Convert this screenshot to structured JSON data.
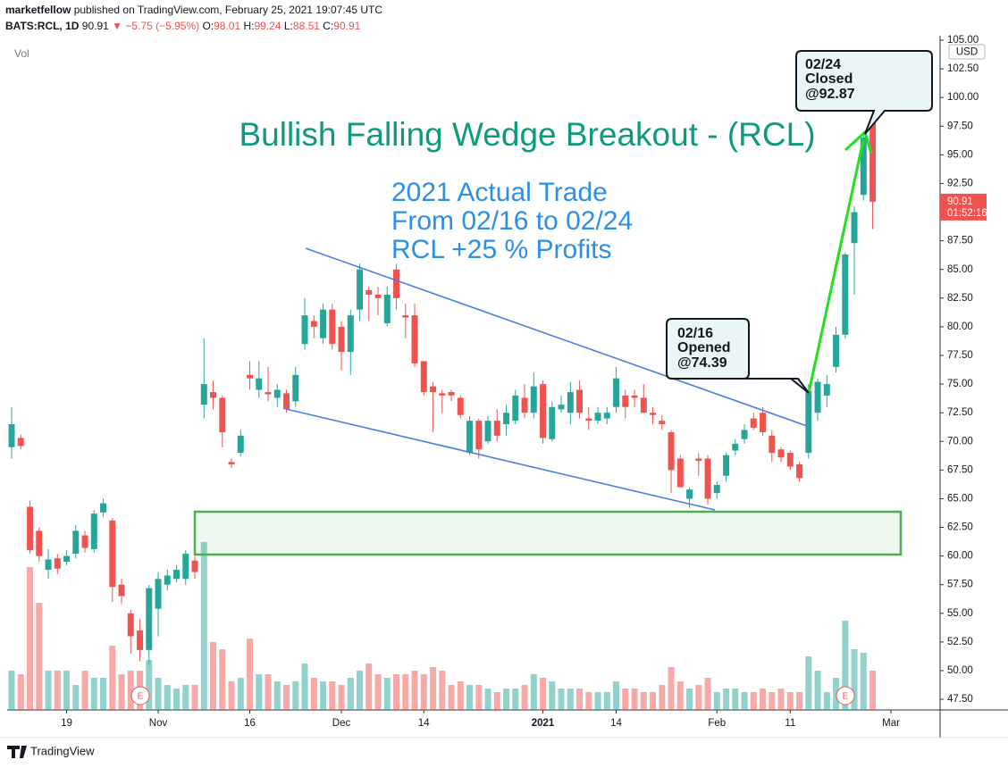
{
  "header": {
    "author": "marketfellow",
    "published": "published on TradingView.com, February 25, 2021 19:07:45 UTC",
    "symbol": "BATS:RCL, 1D",
    "price": "90.91",
    "change": "▼ −5.75 (−5.95%)",
    "o_label": "O:",
    "o": "98.01",
    "h_label": "H:",
    "h": "99.24",
    "l_label": "L:",
    "l": "88.51",
    "c_label": "C:",
    "c": "90.91"
  },
  "footer": {
    "brand": "TradingView"
  },
  "chart_data": {
    "type": "candlestick",
    "volume_label": "Vol",
    "currency": "USD",
    "title": "Bullish Falling Wedge Breakout - (RCL)",
    "subtitle": [
      "2021 Actual Trade",
      "From 02/16 to 02/24",
      "RCL +25 % Profits"
    ],
    "annotations": [
      {
        "lines": [
          "02/16",
          "Opened",
          "@74.39"
        ]
      },
      {
        "lines": [
          "02/24",
          "Closed",
          "@92.87"
        ]
      }
    ],
    "earnings": [
      "E",
      "E"
    ],
    "last_price": 90.91,
    "countdown": "01:52:16",
    "up_color": "#26a69a",
    "down_color": "#ef5350",
    "xlim": [
      -0.49,
      101.36
    ],
    "xticks": [
      {
        "value": 6,
        "label": "19"
      },
      {
        "value": 16,
        "label": "Nov"
      },
      {
        "value": 26,
        "label": "16"
      },
      {
        "value": 36,
        "label": "Dec"
      },
      {
        "value": 45,
        "label": "14"
      },
      {
        "value": 58,
        "label": "2021"
      },
      {
        "value": 66,
        "label": "14"
      },
      {
        "value": 77,
        "label": "Feb"
      },
      {
        "value": 85,
        "label": "11"
      },
      {
        "value": 96,
        "label": "Mar"
      }
    ],
    "ylim": [
      46.57,
      105.39
    ],
    "yticks": [
      {
        "value": 47.5,
        "label": "47.50"
      },
      {
        "value": 50,
        "label": "50.00"
      },
      {
        "value": 52.5,
        "label": "52.50"
      },
      {
        "value": 55,
        "label": "55.00"
      },
      {
        "value": 57.5,
        "label": "57.50"
      },
      {
        "value": 60,
        "label": "60.00"
      },
      {
        "value": 62.5,
        "label": "62.50"
      },
      {
        "value": 65,
        "label": "65.00"
      },
      {
        "value": 67.5,
        "label": "67.50"
      },
      {
        "value": 70,
        "label": "70.00"
      },
      {
        "value": 72.5,
        "label": "72.50"
      },
      {
        "value": 75,
        "label": "75.00"
      },
      {
        "value": 77.5,
        "label": "77.50"
      },
      {
        "value": 80,
        "label": "80.00"
      },
      {
        "value": 82.5,
        "label": "82.50"
      },
      {
        "value": 85,
        "label": "85.00"
      },
      {
        "value": 87.5,
        "label": "87.50"
      },
      {
        "value": 90,
        "label": "90.00"
      },
      {
        "value": 92.5,
        "label": "92.50"
      },
      {
        "value": 95,
        "label": "95.00"
      },
      {
        "value": 97.5,
        "label": "97.50"
      },
      {
        "value": 100,
        "label": "100.00"
      },
      {
        "value": 102.5,
        "label": "102.50"
      },
      {
        "value": 105,
        "label": "105.00"
      }
    ],
    "vlim": [
      0,
      100
    ],
    "open": [
      69.5,
      70.3,
      64.3,
      62.2,
      58.8,
      59.8,
      59.5,
      60.2,
      61.8,
      60.6,
      63.8,
      63.1,
      57.5,
      55,
      53.5,
      51.8,
      55.4,
      57.5,
      58,
      58,
      59.6,
      73.2,
      74.3,
      73.8,
      68.2,
      69,
      75.8,
      74.5,
      74.3,
      73.8,
      74.2,
      73.5,
      78.5,
      80.5,
      79,
      81.5,
      80,
      77.8,
      81.5,
      83.2,
      82.8,
      80.3,
      85,
      81,
      81,
      77,
      74.8,
      74.2,
      74.3,
      73.8,
      69,
      71.8,
      70,
      71.8,
      71.5,
      71.8,
      73.8,
      72.5,
      75,
      70.2,
      72.8,
      72.5,
      74.5,
      72,
      71.8,
      72,
      73,
      74,
      74,
      73.8,
      72.5,
      71.8,
      70.8,
      68.5,
      65,
      68.5,
      68.5,
      65.5,
      67,
      69.2,
      70.2,
      72,
      72.5,
      70.5,
      69.3,
      69,
      68,
      69,
      72.5,
      74,
      76.5,
      79.3,
      87.3,
      91.5,
      98.01
    ],
    "high": [
      73,
      70.6,
      64.8,
      62.5,
      60.6,
      60.2,
      60.5,
      62.7,
      62.2,
      64,
      65,
      63.3,
      58,
      55.3,
      54.5,
      57.5,
      58.6,
      58.8,
      59.2,
      60.5,
      60,
      79,
      75.3,
      74,
      68.5,
      71,
      77,
      77,
      76.5,
      75,
      74.5,
      76.5,
      82.5,
      81,
      82,
      82,
      80.5,
      81.5,
      85.5,
      83.5,
      83.5,
      83.5,
      85.5,
      82,
      82,
      77,
      75.2,
      74.5,
      74.5,
      74,
      72.2,
      72,
      72.2,
      72.8,
      73.2,
      74.5,
      75,
      76,
      75.3,
      73.5,
      74,
      75.2,
      75.3,
      73,
      73,
      73,
      76.5,
      74.5,
      74.5,
      75,
      73,
      72.3,
      71,
      68.8,
      66,
      69,
      68.8,
      66.5,
      69,
      70.2,
      71.5,
      72.5,
      73,
      71,
      69.5,
      69.2,
      68.2,
      75,
      75.5,
      75.8,
      80,
      86.5,
      90.5,
      97,
      99.24
    ],
    "low": [
      68.5,
      69.3,
      60.2,
      59.5,
      58,
      58.4,
      59.2,
      59.8,
      60.3,
      60.3,
      63.4,
      56,
      55.8,
      51.5,
      50.8,
      50.5,
      53,
      57,
      57.7,
      57.5,
      58,
      72,
      72.8,
      69.5,
      67.7,
      68.7,
      74.5,
      73.8,
      73.5,
      73,
      72.5,
      73,
      78,
      79,
      78.5,
      78,
      76.2,
      75.8,
      80.5,
      80.5,
      81,
      80,
      81.5,
      79,
      76.5,
      74,
      70.8,
      72.5,
      73.5,
      72,
      68.8,
      68.5,
      69.8,
      70,
      70.5,
      71.5,
      72,
      72,
      69.8,
      70,
      72.5,
      71.5,
      72,
      71,
      71.5,
      71.5,
      72.5,
      72,
      73,
      72.5,
      71.5,
      71,
      65.5,
      66,
      64.2,
      67,
      64.5,
      65,
      66.5,
      68.8,
      69.8,
      71,
      70.5,
      68.2,
      68.2,
      67.5,
      66.5,
      68.5,
      71.8,
      73,
      76,
      79,
      82.8,
      91,
      88.51
    ],
    "close": [
      71.5,
      69.6,
      60.5,
      60,
      59.7,
      58.9,
      60,
      62.2,
      60.7,
      63.7,
      64.6,
      57.3,
      56.5,
      53,
      51.8,
      57.2,
      58,
      58.3,
      58.8,
      60.2,
      58.6,
      75,
      73.8,
      70.8,
      68,
      70.5,
      75.5,
      75.5,
      74.1,
      74.5,
      72.8,
      75.8,
      81,
      80,
      81.5,
      78.5,
      77.8,
      81,
      85,
      82.8,
      82.5,
      82.8,
      82.5,
      80.8,
      76.8,
      74.3,
      74.3,
      74,
      74,
      72.3,
      71.8,
      69.3,
      71.8,
      70.5,
      72.5,
      74,
      72.5,
      74.8,
      70.3,
      73,
      73.2,
      74.3,
      72.5,
      71.8,
      72.5,
      72.5,
      75.5,
      73,
      73.8,
      72.5,
      72.3,
      71.5,
      67.5,
      66,
      65.8,
      68.3,
      65,
      66.2,
      68.8,
      69.8,
      71,
      71.2,
      70.8,
      69,
      68.6,
      67.8,
      66.8,
      74.4,
      75.2,
      75,
      79.3,
      86.3,
      90,
      96.5,
      90.91
    ],
    "volume": [
      22,
      20,
      80,
      60,
      22,
      22,
      22,
      14,
      22,
      18,
      18,
      36,
      20,
      22,
      22,
      28,
      18,
      14,
      12,
      14,
      14,
      94,
      38,
      34,
      16,
      18,
      40,
      20,
      20,
      16,
      14,
      16,
      26,
      18,
      16,
      16,
      14,
      18,
      22,
      26,
      20,
      18,
      20,
      20,
      22,
      20,
      24,
      22,
      14,
      16,
      14,
      14,
      12,
      10,
      12,
      12,
      14,
      20,
      18,
      16,
      12,
      12,
      12,
      10,
      10,
      10,
      16,
      12,
      12,
      10,
      10,
      14,
      24,
      16,
      12,
      14,
      18,
      10,
      12,
      12,
      10,
      10,
      12,
      10,
      12,
      10,
      10,
      30,
      22,
      10,
      18,
      50,
      34,
      32,
      22
    ]
  }
}
